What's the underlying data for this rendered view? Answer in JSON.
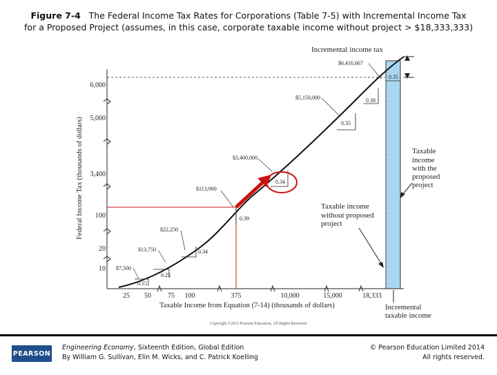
{
  "title": {
    "figure_label": "Figure 7-4",
    "line1_rest": "The Federal Income Tax Rates for Corporations (Table 7-5) with Incremental Income Tax",
    "line2": "for a Proposed Project (assumes, in this case, corporate taxable income without project > $18,333,333)"
  },
  "chart_data": {
    "type": "line",
    "xlabel": "Taxable Income from Equation (7-14) (thousands of dollars)",
    "ylabel": "Federal Income Tax (thousands of dollars)",
    "x_ticks": [
      "25",
      "50",
      "75",
      "100",
      "375",
      "10,000",
      "15,000",
      "18,333"
    ],
    "y_ticks": [
      "10",
      "20",
      "100",
      "3,400",
      "5,000",
      "6,000"
    ],
    "breakpoints": [
      {
        "label": "$7,500",
        "rate": "0.15"
      },
      {
        "label": "$13,750",
        "rate": "0.25"
      },
      {
        "label": "$22,250",
        "rate": "0.34"
      },
      {
        "label": "$113,900",
        "rate": "0.39"
      },
      {
        "label": "$3,400,000",
        "rate": "0.34"
      },
      {
        "label": "$5,150,000",
        "rate": "0.35"
      },
      {
        "label": "$6,416,667",
        "rate": "0.38"
      }
    ],
    "top_rate": "0.35",
    "annotations": {
      "incremental_income_tax": "Incremental income tax",
      "taxable_income_with_line1": "Taxable",
      "taxable_income_with_line2": "income",
      "taxable_income_with_line3": "with the",
      "taxable_income_with_line4": "proposed",
      "taxable_income_with_line5": "project",
      "taxable_without_line1": "Taxable  income",
      "taxable_without_line2": "without proposed",
      "taxable_without_line3": "project",
      "incremental_taxable_line1": "Incremental",
      "incremental_taxable_line2": "taxable income",
      "copyright": "Copyright ©2015 Pearson Education, All Rights Reserved"
    },
    "colors": {
      "curve": "#111111",
      "highlight": "#cc1111",
      "band": "#a9d6f0",
      "grid": "#555555"
    }
  },
  "footer": {
    "logo": "PEARSON",
    "book_title": "Engineering Economy",
    "book_edition": ", Sixteenth Edition, Global Edition",
    "authors": "By William G. Sullivan, Elin M. Wicks, and C. Patrick Koelling",
    "copyright": "© Pearson Education Limited 2014",
    "rights": "All rights reserved."
  }
}
